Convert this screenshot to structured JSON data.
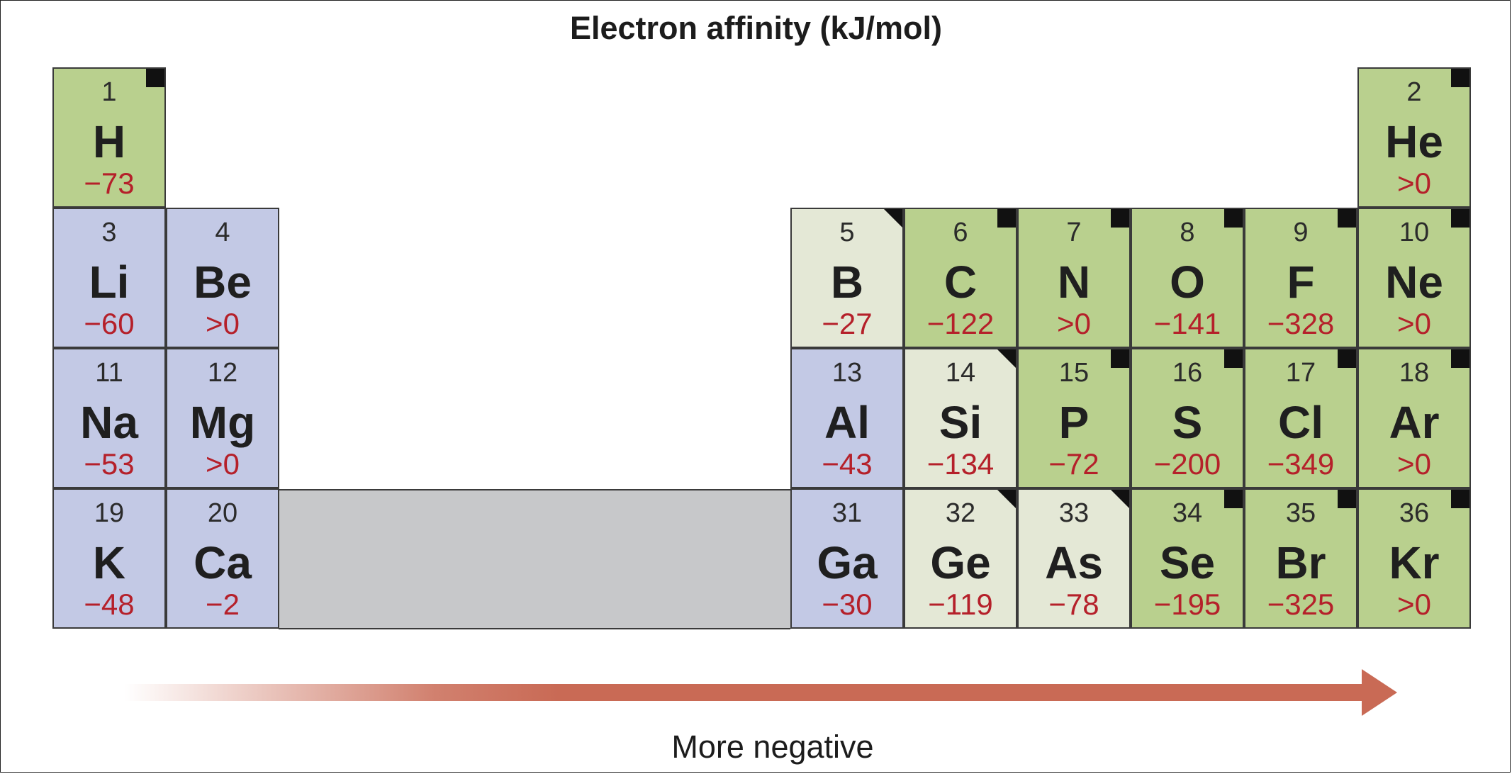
{
  "title": "Electron affinity (kJ/mol)",
  "arrow_label": "More negative",
  "colors": {
    "metal": "#c3c9e5",
    "metalloid": "#e4e8d6",
    "nonmetal": "#b9d08e",
    "value_text": "#b5202a",
    "d_block": "#c7c8ca",
    "arrow": "#c96a55"
  },
  "elements": [
    {
      "number": "1",
      "symbol": "H",
      "affinity": "−73",
      "category": "nonmetal",
      "row": 1,
      "col": 1,
      "mark": "square"
    },
    {
      "number": "2",
      "symbol": "He",
      "affinity": ">0",
      "category": "nonmetal",
      "row": 1,
      "col": 18,
      "mark": "square"
    },
    {
      "number": "3",
      "symbol": "Li",
      "affinity": "−60",
      "category": "metal",
      "row": 2,
      "col": 1,
      "mark": ""
    },
    {
      "number": "4",
      "symbol": "Be",
      "affinity": ">0",
      "category": "metal",
      "row": 2,
      "col": 2,
      "mark": ""
    },
    {
      "number": "5",
      "symbol": "B",
      "affinity": "−27",
      "category": "metalloid",
      "row": 2,
      "col": 13,
      "mark": "triangle"
    },
    {
      "number": "6",
      "symbol": "C",
      "affinity": "−122",
      "category": "nonmetal",
      "row": 2,
      "col": 14,
      "mark": "square"
    },
    {
      "number": "7",
      "symbol": "N",
      "affinity": ">0",
      "category": "nonmetal",
      "row": 2,
      "col": 15,
      "mark": "square"
    },
    {
      "number": "8",
      "symbol": "O",
      "affinity": "−141",
      "category": "nonmetal",
      "row": 2,
      "col": 16,
      "mark": "square"
    },
    {
      "number": "9",
      "symbol": "F",
      "affinity": "−328",
      "category": "nonmetal",
      "row": 2,
      "col": 17,
      "mark": "square"
    },
    {
      "number": "10",
      "symbol": "Ne",
      "affinity": ">0",
      "category": "nonmetal",
      "row": 2,
      "col": 18,
      "mark": "square"
    },
    {
      "number": "11",
      "symbol": "Na",
      "affinity": "−53",
      "category": "metal",
      "row": 3,
      "col": 1,
      "mark": ""
    },
    {
      "number": "12",
      "symbol": "Mg",
      "affinity": ">0",
      "category": "metal",
      "row": 3,
      "col": 2,
      "mark": ""
    },
    {
      "number": "13",
      "symbol": "Al",
      "affinity": "−43",
      "category": "metal",
      "row": 3,
      "col": 13,
      "mark": ""
    },
    {
      "number": "14",
      "symbol": "Si",
      "affinity": "−134",
      "category": "metalloid",
      "row": 3,
      "col": 14,
      "mark": "triangle"
    },
    {
      "number": "15",
      "symbol": "P",
      "affinity": "−72",
      "category": "nonmetal",
      "row": 3,
      "col": 15,
      "mark": "square"
    },
    {
      "number": "16",
      "symbol": "S",
      "affinity": "−200",
      "category": "nonmetal",
      "row": 3,
      "col": 16,
      "mark": "square"
    },
    {
      "number": "17",
      "symbol": "Cl",
      "affinity": "−349",
      "category": "nonmetal",
      "row": 3,
      "col": 17,
      "mark": "square"
    },
    {
      "number": "18",
      "symbol": "Ar",
      "affinity": ">0",
      "category": "nonmetal",
      "row": 3,
      "col": 18,
      "mark": "square"
    },
    {
      "number": "19",
      "symbol": "K",
      "affinity": "−48",
      "category": "metal",
      "row": 4,
      "col": 1,
      "mark": ""
    },
    {
      "number": "20",
      "symbol": "Ca",
      "affinity": "−2",
      "category": "metal",
      "row": 4,
      "col": 2,
      "mark": ""
    },
    {
      "number": "31",
      "symbol": "Ga",
      "affinity": "−30",
      "category": "metal",
      "row": 4,
      "col": 13,
      "mark": ""
    },
    {
      "number": "32",
      "symbol": "Ge",
      "affinity": "−119",
      "category": "metalloid",
      "row": 4,
      "col": 14,
      "mark": "triangle"
    },
    {
      "number": "33",
      "symbol": "As",
      "affinity": "−78",
      "category": "metalloid",
      "row": 4,
      "col": 15,
      "mark": "triangle"
    },
    {
      "number": "34",
      "symbol": "Se",
      "affinity": "−195",
      "category": "nonmetal",
      "row": 4,
      "col": 16,
      "mark": "square"
    },
    {
      "number": "35",
      "symbol": "Br",
      "affinity": "−325",
      "category": "nonmetal",
      "row": 4,
      "col": 17,
      "mark": "square"
    },
    {
      "number": "36",
      "symbol": "Kr",
      "affinity": ">0",
      "category": "nonmetal",
      "row": 4,
      "col": 18,
      "mark": "square"
    }
  ]
}
